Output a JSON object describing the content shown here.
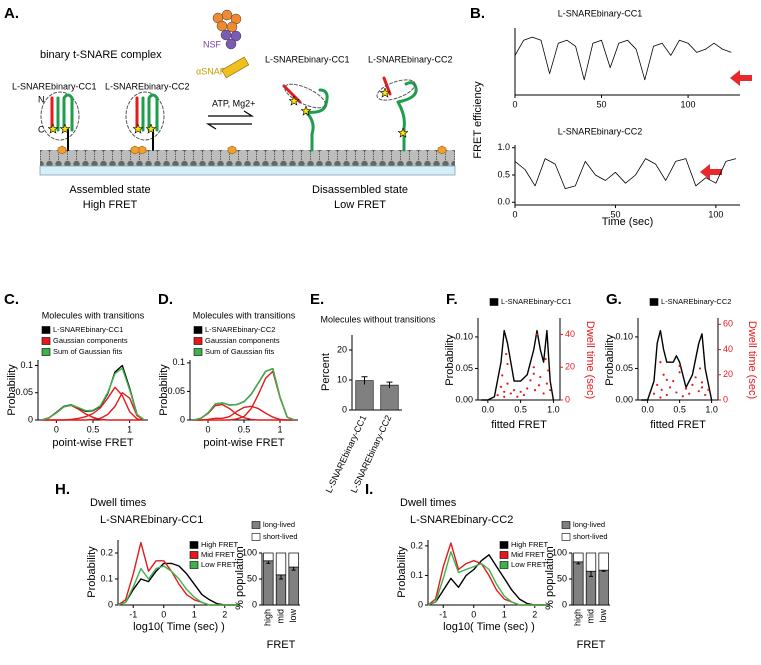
{
  "diagram": {
    "label": "A.",
    "title": "binary t-SNARE complex",
    "assembled_labels": [
      "L-SNAREbinary-CC1",
      "L-SNAREbinary-CC2"
    ],
    "n": "N",
    "c": "C",
    "nsf": "NSF",
    "asnap": "αSNAP",
    "condition": "ATP, Mg2+",
    "disassembled_labels": [
      "L-SNAREbinary-CC1",
      "L-SNAREbinary-CC2"
    ],
    "states": [
      {
        "name": "Assembled state",
        "fret": "High FRET"
      },
      {
        "name": "Disassembled state",
        "fret": "Low FRET"
      }
    ]
  },
  "chart_data": [
    {
      "type": "line",
      "panel": "B.",
      "title": "L-SNAREbinary-CC1",
      "ylabel": "FRET efficiency",
      "x": [
        0,
        5,
        10,
        15,
        20,
        25,
        30,
        35,
        40,
        45,
        50,
        55,
        60,
        65,
        70,
        75,
        80,
        85,
        90,
        95,
        100,
        105,
        110,
        115,
        120,
        125
      ],
      "series": [
        {
          "color": "#000000",
          "values": [
            0.6,
            0.85,
            0.9,
            0.85,
            0.3,
            0.8,
            0.85,
            0.75,
            0.2,
            0.8,
            0.85,
            0.4,
            0.8,
            0.85,
            0.7,
            0.2,
            0.75,
            0.8,
            0.6,
            0.85,
            0.8,
            0.65,
            0.7,
            0.8,
            0.7,
            0.65
          ]
        }
      ],
      "xlim": [
        0,
        130
      ],
      "xticks": [
        0,
        50,
        100
      ],
      "ylim": [
        -0.05,
        1.05
      ]
    },
    {
      "type": "line",
      "title": "L-SNAREbinary-CC2",
      "xlabel": "Time (sec)",
      "x": [
        0,
        5,
        10,
        15,
        20,
        25,
        30,
        35,
        40,
        45,
        50,
        55,
        60,
        65,
        70,
        75,
        80,
        85,
        90,
        95,
        100,
        105,
        110
      ],
      "series": [
        {
          "color": "#000000",
          "values": [
            0.75,
            0.6,
            0.3,
            0.8,
            0.7,
            0.25,
            0.3,
            0.75,
            0.5,
            0.4,
            0.55,
            0.35,
            0.5,
            0.8,
            0.7,
            0.4,
            0.75,
            0.8,
            0.3,
            0.45,
            0.35,
            0.75,
            0.8
          ]
        }
      ],
      "xlim": [
        0,
        112
      ],
      "xticks": [
        0,
        50,
        100
      ],
      "ylim": [
        -0.05,
        1.05
      ],
      "yticks": [
        {
          "value": 0,
          "label": "0.0"
        },
        0.5,
        {
          "value": 1,
          "label": "1.0"
        }
      ]
    },
    {
      "type": "line",
      "panel": "C.",
      "title": "Molecules with transitions",
      "xlabel": "point-wise FRET",
      "ylabel": "Probability",
      "x": [
        -0.2,
        -0.1,
        0,
        0.1,
        0.2,
        0.3,
        0.4,
        0.5,
        0.6,
        0.7,
        0.8,
        0.9,
        1.0,
        1.1,
        1.2
      ],
      "series": [
        {
          "name": "L-SNAREbinary-CC1",
          "color": "#000000",
          "values": [
            0,
            0.004,
            0.014,
            0.025,
            0.028,
            0.022,
            0.016,
            0.017,
            0.025,
            0.048,
            0.088,
            0.1,
            0.058,
            0.01,
            0
          ]
        },
        {
          "name": "Gaussian components",
          "color": "#e41a1c",
          "values": [
            0,
            0.004,
            0.013,
            0.024,
            0.027,
            0.02,
            0.011,
            0.005,
            0.001,
            0,
            0,
            0,
            0,
            0,
            0
          ]
        },
        {
          "color": "#e41a1c",
          "values": [
            0,
            0,
            0,
            0,
            0.001,
            0.003,
            0.006,
            0.012,
            0.022,
            0.04,
            0.06,
            0.045,
            0.015,
            0.002,
            0
          ]
        },
        {
          "color": "#e41a1c",
          "values": [
            0,
            0,
            0,
            0,
            0,
            0,
            0,
            0.001,
            0.003,
            0.01,
            0.025,
            0.05,
            0.04,
            0.008,
            0
          ]
        },
        {
          "name": "Sum of Gaussian fits",
          "color": "#3cb44b",
          "values": [
            0,
            0.004,
            0.013,
            0.024,
            0.028,
            0.023,
            0.017,
            0.018,
            0.026,
            0.05,
            0.085,
            0.095,
            0.055,
            0.01,
            0
          ]
        }
      ],
      "xlim": [
        -0.25,
        1.25
      ],
      "xticks": [
        0,
        0.5,
        1
      ],
      "ylim": [
        0,
        0.11
      ],
      "yticks": [
        0,
        0.05,
        0.1
      ]
    },
    {
      "type": "line",
      "panel": "D.",
      "title": "Molecules with transitions",
      "xlabel": "point-wise FRET",
      "ylabel": "Probability",
      "x": [
        -0.2,
        -0.1,
        0,
        0.1,
        0.2,
        0.3,
        0.4,
        0.5,
        0.6,
        0.7,
        0.8,
        0.9,
        1.0,
        1.1,
        1.2
      ],
      "series": [
        {
          "name": "L-SNAREbinary-CC2",
          "color": "#000000",
          "values": [
            0,
            0.003,
            0.012,
            0.028,
            0.03,
            0.026,
            0.027,
            0.032,
            0.045,
            0.065,
            0.085,
            0.09,
            0.04,
            0.005,
            0
          ]
        },
        {
          "name": "Gaussian components",
          "color": "#e41a1c",
          "values": [
            0,
            0.003,
            0.011,
            0.025,
            0.027,
            0.02,
            0.01,
            0.004,
            0.001,
            0,
            0,
            0,
            0,
            0,
            0
          ]
        },
        {
          "color": "#e41a1c",
          "values": [
            0,
            0,
            0.001,
            0.003,
            0.003,
            0.006,
            0.015,
            0.022,
            0.024,
            0.02,
            0.012,
            0.005,
            0.001,
            0,
            0
          ]
        },
        {
          "color": "#e41a1c",
          "values": [
            0,
            0,
            0,
            0,
            0,
            0,
            0.002,
            0.006,
            0.02,
            0.045,
            0.073,
            0.085,
            0.039,
            0.005,
            0
          ]
        },
        {
          "name": "Sum of Gaussian fits",
          "color": "#3cb44b",
          "values": [
            0,
            0.003,
            0.012,
            0.028,
            0.03,
            0.026,
            0.027,
            0.032,
            0.045,
            0.065,
            0.085,
            0.09,
            0.04,
            0.005,
            0
          ]
        }
      ],
      "xlim": [
        -0.25,
        1.25
      ],
      "xticks": [
        0,
        0.5,
        1
      ],
      "ylim": [
        0,
        0.105
      ],
      "yticks": [
        0,
        0.05,
        0.1
      ]
    },
    {
      "type": "bar",
      "panel": "E.",
      "title": "Molecules without transitions",
      "ylabel": "Percent",
      "categories": [
        "L-SNAREbinary-CC1",
        "L-SNAREbinary-CC2"
      ],
      "values": [
        9.8,
        8.3
      ],
      "errors": [
        1.3,
        1.0
      ],
      "color": "#808080",
      "ylim": [
        0,
        25
      ],
      "yticks": [
        0,
        10,
        20
      ]
    },
    {
      "type": "line",
      "panel": "F.",
      "xlabel": "fitted FRET",
      "ylabel": "Probability",
      "y2label": "Dwell time (sec)",
      "x": [
        -0.1,
        0,
        0.1,
        0.2,
        0.25,
        0.3,
        0.4,
        0.5,
        0.6,
        0.7,
        0.75,
        0.8,
        0.85,
        0.9,
        0.95,
        1.0
      ],
      "series": [
        {
          "name": "L-SNAREbinary-CC1",
          "color": "#000000",
          "values": [
            0,
            0,
            0.005,
            0.06,
            0.11,
            0.09,
            0.03,
            0.03,
            0.04,
            0.08,
            0.11,
            0.08,
            0.06,
            0.11,
            0.03,
            0
          ]
        },
        {
          "type": "scatter",
          "axis": "y2",
          "color": "#e41a1c",
          "x": [
            0.15,
            0.2,
            0.22,
            0.25,
            0.28,
            0.3,
            0.35,
            0.4,
            0.45,
            0.5,
            0.55,
            0.6,
            0.65,
            0.7,
            0.72,
            0.75,
            0.78,
            0.8,
            0.85,
            0.88,
            0.9,
            0.92,
            0.3,
            0.7,
            0.25,
            0.95
          ],
          "values": [
            3,
            8,
            15,
            5,
            28,
            10,
            4,
            6,
            2,
            5,
            3,
            7,
            12,
            20,
            6,
            40,
            9,
            14,
            4,
            25,
            10,
            18,
            22,
            16,
            2,
            6
          ]
        }
      ],
      "xlim": [
        -0.15,
        1.1
      ],
      "xticks": [
        {
          "value": 0,
          "label": "0.0"
        },
        0.5,
        {
          "value": 1,
          "label": "1.0"
        }
      ],
      "ylim": [
        0,
        0.13
      ],
      "yticks": [
        {
          "value": 0,
          "label": "0.00"
        },
        {
          "value": 0.05,
          "label": "0.05"
        },
        {
          "value": 0.1,
          "label": "0.10"
        }
      ],
      "y2lim": [
        0,
        50
      ],
      "y2ticks": [
        0,
        20,
        40
      ],
      "y2color": "#e41a1c"
    },
    {
      "type": "line",
      "panel": "G.",
      "xlabel": "fitted FRET",
      "ylabel": "Probability",
      "y2label": "Dwell time (sec)",
      "x": [
        -0.1,
        0,
        0.1,
        0.15,
        0.2,
        0.25,
        0.3,
        0.4,
        0.45,
        0.5,
        0.6,
        0.7,
        0.8,
        0.85,
        0.9,
        1.0
      ],
      "series": [
        {
          "name": "L-SNAREbinary-CC2",
          "color": "#000000",
          "values": [
            0,
            0,
            0.03,
            0.09,
            0.11,
            0.08,
            0.06,
            0.06,
            0.07,
            0.06,
            0.02,
            0.04,
            0.09,
            0.105,
            0.05,
            0
          ]
        },
        {
          "type": "scatter",
          "axis": "y2",
          "color": "#e41a1c",
          "x": [
            0.1,
            0.15,
            0.2,
            0.22,
            0.25,
            0.3,
            0.35,
            0.4,
            0.45,
            0.5,
            0.55,
            0.6,
            0.65,
            0.7,
            0.75,
            0.8,
            0.82,
            0.85,
            0.9,
            0.95,
            0.2,
            0.5,
            0.85,
            0.3
          ],
          "values": [
            5,
            12,
            30,
            8,
            20,
            4,
            10,
            15,
            6,
            22,
            3,
            9,
            5,
            12,
            18,
            7,
            25,
            14,
            4,
            8,
            2,
            27,
            10,
            16
          ]
        }
      ],
      "xlim": [
        -0.15,
        1.1
      ],
      "xticks": [
        {
          "value": 0,
          "label": "0.0"
        },
        0.5,
        {
          "value": 1,
          "label": "1.0"
        }
      ],
      "ylim": [
        0,
        0.13
      ],
      "yticks": [
        {
          "value": 0,
          "label": "0.00"
        },
        {
          "value": 0.05,
          "label": "0.05"
        },
        {
          "value": 0.1,
          "label": "0.10"
        }
      ],
      "y2lim": [
        0,
        65
      ],
      "y2ticks": [
        0,
        20,
        40,
        60
      ],
      "y2color": "#e41a1c"
    },
    {
      "type": "line",
      "panel": "H.",
      "title": "Dwell times",
      "subtitle": "L-SNAREbinary-CC1",
      "xlabel": "log10( Time (sec) )",
      "ylabel": "Probability",
      "x": [
        -1.5,
        -1.25,
        -1,
        -0.75,
        -0.5,
        -0.25,
        0,
        0.25,
        0.5,
        0.75,
        1,
        1.25,
        1.5,
        1.75,
        2,
        2.25,
        2.5
      ],
      "series": [
        {
          "name": "High FRET",
          "color": "#000000",
          "values": [
            0,
            0.01,
            0.06,
            0.1,
            0.09,
            0.13,
            0.16,
            0.16,
            0.15,
            0.12,
            0.08,
            0.04,
            0.02,
            0.005,
            0,
            0,
            0
          ]
        },
        {
          "name": "Mid FRET",
          "color": "#e41a1c",
          "values": [
            0,
            0.02,
            0.12,
            0.24,
            0.13,
            0.17,
            0.17,
            0.13,
            0.08,
            0.04,
            0.02,
            0.01,
            0,
            0,
            0,
            0,
            0
          ]
        },
        {
          "name": "Low FRET",
          "color": "#3cb44b",
          "values": [
            0,
            0.01,
            0.07,
            0.14,
            0.1,
            0.14,
            0.15,
            0.13,
            0.1,
            0.06,
            0.03,
            0.01,
            0,
            0,
            0,
            0,
            0
          ]
        }
      ],
      "xlim": [
        -1.5,
        2.5
      ],
      "xticks": [
        -1,
        0,
        1,
        2
      ],
      "ylim": [
        0,
        0.25
      ],
      "yticks": [
        0,
        0.1,
        0.2
      ]
    },
    {
      "type": "stacked_bar",
      "xlabel": "FRET",
      "ylabel": "% population",
      "categories": [
        "high",
        "mid",
        "low"
      ],
      "series": [
        {
          "name": "long-lived",
          "color": "#808080",
          "values": [
            85,
            58,
            73
          ],
          "errors": [
            5,
            8,
            6
          ]
        },
        {
          "name": "short-lived",
          "color": "#ffffff",
          "values": [
            15,
            42,
            27
          ]
        }
      ],
      "ylim": [
        0,
        100
      ],
      "yticks": [
        0,
        50,
        100
      ]
    },
    {
      "type": "line",
      "panel": "I.",
      "title": "Dwell times",
      "subtitle": "L-SNAREbinary-CC2",
      "xlabel": "log10( Time (sec) )",
      "ylabel": "Probability",
      "x": [
        -1.5,
        -1.25,
        -1,
        -0.75,
        -0.5,
        -0.25,
        0,
        0.25,
        0.5,
        0.75,
        1,
        1.25,
        1.5,
        1.75,
        2,
        2.25,
        2.5
      ],
      "series": [
        {
          "name": "High FRET",
          "color": "#000000",
          "values": [
            0,
            0.01,
            0.05,
            0.09,
            0.06,
            0.1,
            0.12,
            0.15,
            0.17,
            0.13,
            0.09,
            0.05,
            0.02,
            0.005,
            0,
            0,
            0
          ]
        },
        {
          "name": "Mid FRET",
          "color": "#e41a1c",
          "values": [
            0,
            0.02,
            0.13,
            0.21,
            0.12,
            0.14,
            0.15,
            0.14,
            0.1,
            0.05,
            0.02,
            0.01,
            0,
            0,
            0,
            0,
            0
          ]
        },
        {
          "name": "Low FRET",
          "color": "#3cb44b",
          "values": [
            0,
            0.01,
            0.09,
            0.18,
            0.11,
            0.12,
            0.13,
            0.14,
            0.12,
            0.07,
            0.03,
            0.01,
            0,
            0,
            0,
            0,
            0
          ]
        }
      ],
      "xlim": [
        -1.5,
        2.5
      ],
      "xticks": [
        -1,
        0,
        1,
        2
      ],
      "ylim": [
        0,
        0.22
      ],
      "yticks": [
        0,
        0.1,
        0.2
      ]
    },
    {
      "type": "stacked_bar",
      "xlabel": "FRET",
      "ylabel": "% population",
      "categories": [
        "high",
        "mid",
        "low"
      ],
      "series": [
        {
          "name": "long-lived",
          "color": "#808080",
          "values": [
            83,
            65,
            67
          ],
          "errors": [
            4,
            10,
            2
          ]
        },
        {
          "name": "short-lived",
          "color": "#ffffff",
          "values": [
            17,
            35,
            33
          ]
        }
      ],
      "ylim": [
        0,
        100
      ],
      "yticks": [
        0,
        50,
        100
      ]
    }
  ]
}
